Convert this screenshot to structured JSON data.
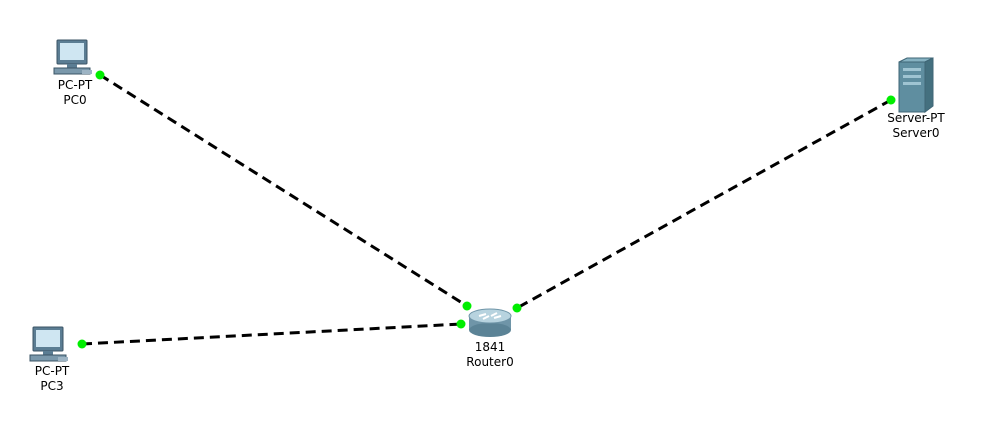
{
  "devices": [
    {
      "id": "pc0",
      "model": "PC-PT",
      "name": "PC0",
      "icon": "pc-icon"
    },
    {
      "id": "pc3",
      "model": "PC-PT",
      "name": "PC3",
      "icon": "pc-icon"
    },
    {
      "id": "router0",
      "model": "1841",
      "name": "Router0",
      "icon": "router-icon"
    },
    {
      "id": "server0",
      "model": "Server-PT",
      "name": "Server0",
      "icon": "server-icon"
    }
  ],
  "links": [
    {
      "from": "pc0",
      "to": "router0",
      "style": "dashed",
      "end_status": "up"
    },
    {
      "from": "pc3",
      "to": "router0",
      "style": "dashed",
      "end_status": "up"
    },
    {
      "from": "server0",
      "to": "router0",
      "style": "dashed",
      "end_status": "up"
    }
  ],
  "colors": {
    "link": "#000000",
    "port_up": "#00ee00"
  }
}
